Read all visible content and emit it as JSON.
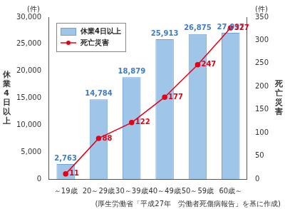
{
  "chart_data": {
    "type": "bar",
    "categories": [
      "～19歳",
      "20～29歳",
      "30～39歳",
      "40～49歳",
      "50～59歳",
      "60歳～"
    ],
    "series": [
      {
        "name": "休業4日以上",
        "type": "bar",
        "color": "#9fc5e8",
        "values": [
          2763,
          14784,
          18879,
          25913,
          26875,
          27097
        ],
        "value_labels": [
          "2,763",
          "14,784",
          "18,879",
          "25,913",
          "26,875",
          "27,097"
        ]
      },
      {
        "name": "死亡災害",
        "type": "line",
        "axis": "y2",
        "color": "#e60012",
        "marker": "circle",
        "values": [
          11,
          88,
          122,
          177,
          247,
          327
        ]
      }
    ],
    "ylabel": "休業4日以上",
    "y2label": "死亡災害",
    "ylim": [
      0,
      30000
    ],
    "yticks": [
      0,
      {
        "value": 5000,
        "label": "5,000"
      },
      {
        "value": 10000,
        "label": "10,000"
      },
      {
        "value": 15000,
        "label": "15,000"
      },
      {
        "value": 20000,
        "label": "20,000"
      },
      {
        "value": 25000,
        "label": "25,000"
      },
      {
        "value": 30000,
        "label": "30,000"
      }
    ],
    "y2lim": [
      0,
      350
    ],
    "y2ticks": [
      0,
      50,
      100,
      150,
      200,
      250,
      300,
      350
    ],
    "annotations": [
      "(件)",
      "(件)",
      "(厚生労働省「平成27年　労働者死傷病報告」を基に作成)"
    ],
    "data_labels": true,
    "legend": "upper left",
    "grid": false
  }
}
